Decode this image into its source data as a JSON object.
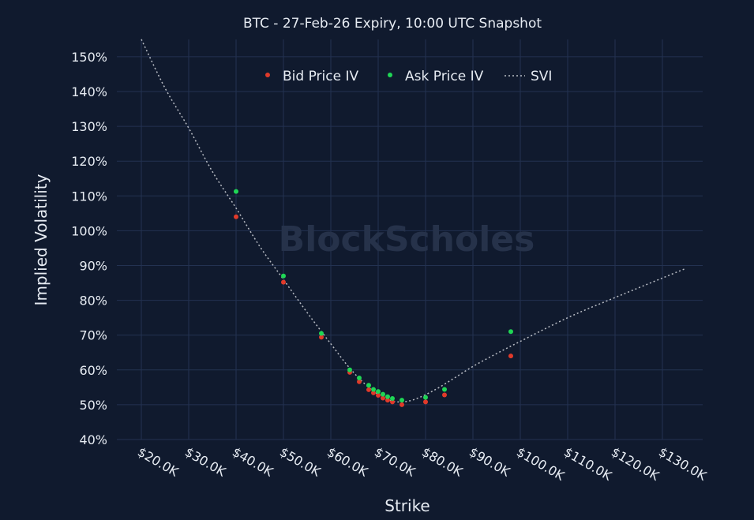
{
  "chart_data": {
    "type": "scatter",
    "title": "BTC - 27-Feb-26 Expiry, 10:00 UTC Snapshot",
    "xlabel": "Strike",
    "ylabel": "Implied Volatility",
    "xlim": [
      20000,
      135000
    ],
    "ylim": [
      40,
      155
    ],
    "x_ticks": [
      20000,
      30000,
      40000,
      50000,
      60000,
      70000,
      80000,
      90000,
      100000,
      110000,
      120000,
      130000
    ],
    "x_tick_labels": [
      "$20.0K",
      "$30.0K",
      "$40.0K",
      "$50.0K",
      "$60.0K",
      "$70.0K",
      "$80.0K",
      "$90.0K",
      "$100.0K",
      "$110.0K",
      "$120.0K",
      "$130.0K"
    ],
    "y_ticks": [
      40,
      50,
      60,
      70,
      80,
      90,
      100,
      110,
      120,
      130,
      140,
      150
    ],
    "y_tick_labels": [
      "40%",
      "50%",
      "60%",
      "70%",
      "80%",
      "90%",
      "100%",
      "110%",
      "120%",
      "130%",
      "140%",
      "150%"
    ],
    "grid": true,
    "legend_position": "top-center",
    "watermark": "BlockScholes",
    "series": [
      {
        "name": "Bid Price IV",
        "kind": "points",
        "color": "#e03a2a",
        "x": [
          40000,
          50000,
          58000,
          64000,
          66000,
          68000,
          69000,
          70000,
          71000,
          72000,
          73000,
          75000,
          80000,
          84000,
          98000
        ],
        "y": [
          104,
          85.2,
          69.4,
          59.3,
          56.6,
          54.3,
          53.4,
          52.7,
          51.9,
          51.3,
          50.8,
          50.0,
          50.8,
          52.8,
          64.0
        ]
      },
      {
        "name": "Ask Price IV",
        "kind": "points",
        "color": "#1fd655",
        "x": [
          40000,
          50000,
          58000,
          64000,
          66000,
          68000,
          69000,
          70000,
          71000,
          72000,
          73000,
          75000,
          80000,
          84000,
          98000
        ],
        "y": [
          111.3,
          87.0,
          70.5,
          60.0,
          57.7,
          55.6,
          54.4,
          53.8,
          53.0,
          52.3,
          51.8,
          51.3,
          52.1,
          54.4,
          71.0
        ]
      },
      {
        "name": "SVI",
        "kind": "dotted-line",
        "color": "#b8bcc4",
        "x": [
          20000,
          25000,
          30000,
          35000,
          40000,
          45000,
          50000,
          55000,
          60000,
          64000,
          68000,
          72000,
          75000,
          78000,
          82000,
          86000,
          90000,
          95000,
          100000,
          110000,
          120000,
          135000
        ],
        "y": [
          155,
          141,
          129.5,
          117,
          106.5,
          95.5,
          86,
          76.5,
          67.5,
          60.5,
          55,
          51.5,
          50.8,
          51.7,
          54.3,
          57.6,
          61,
          64.7,
          68.2,
          75,
          80.8,
          89.2
        ]
      }
    ]
  }
}
